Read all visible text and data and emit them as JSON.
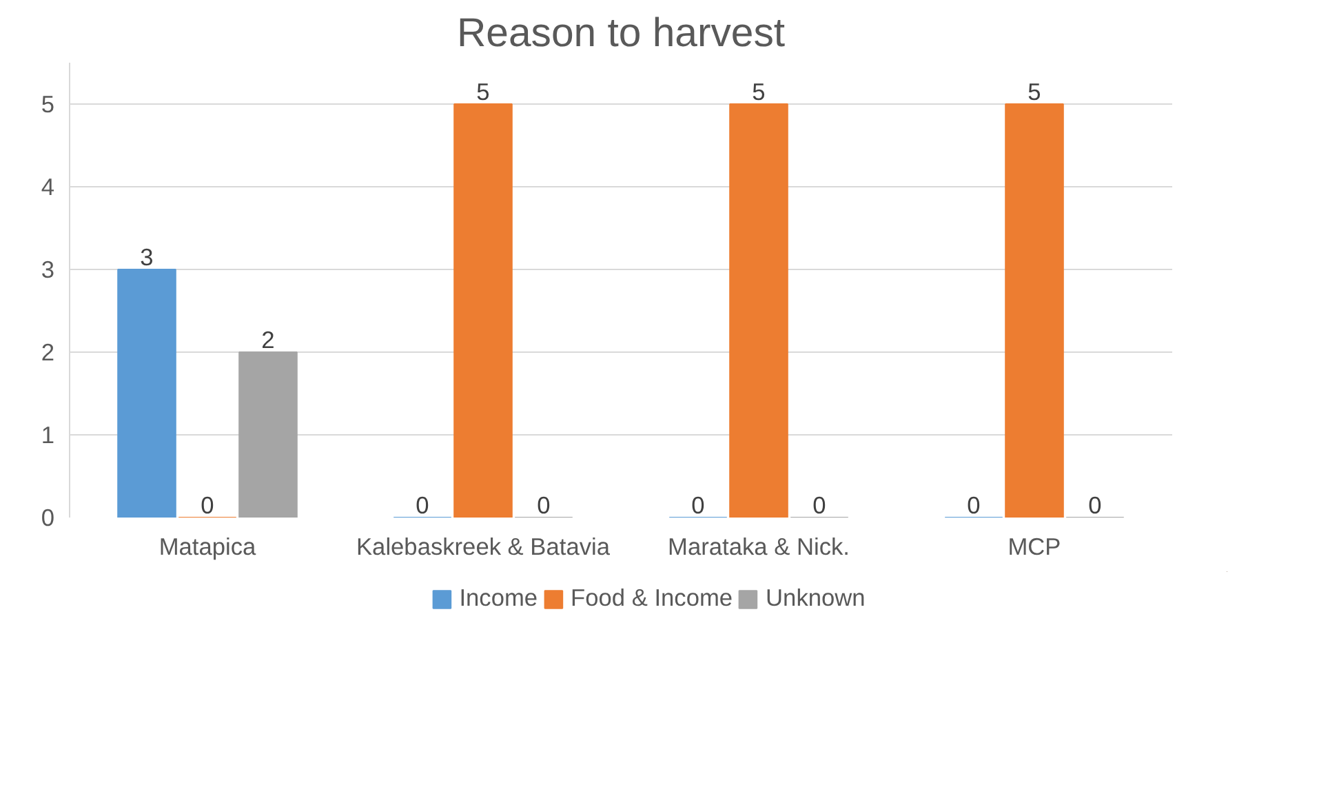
{
  "chart_data": {
    "type": "bar",
    "title": "Reason to harvest",
    "categories": [
      "Matapica",
      "Kalebaskreek & Batavia",
      "Marataka & Nick.",
      "MCP"
    ],
    "series": [
      {
        "name": "Income",
        "color": "#5b9bd5",
        "values": [
          3,
          0,
          0,
          0
        ]
      },
      {
        "name": "Food & Income",
        "color": "#ed7d31",
        "values": [
          0,
          5,
          5,
          5
        ]
      },
      {
        "name": "Unknown",
        "color": "#a5a5a5",
        "values": [
          2,
          0,
          0,
          0
        ]
      }
    ],
    "ylim": [
      0,
      5.5
    ],
    "yticks": [
      0,
      1,
      2,
      3,
      4,
      5
    ],
    "grid": "y",
    "data_labels": true,
    "legend": "bottom"
  }
}
